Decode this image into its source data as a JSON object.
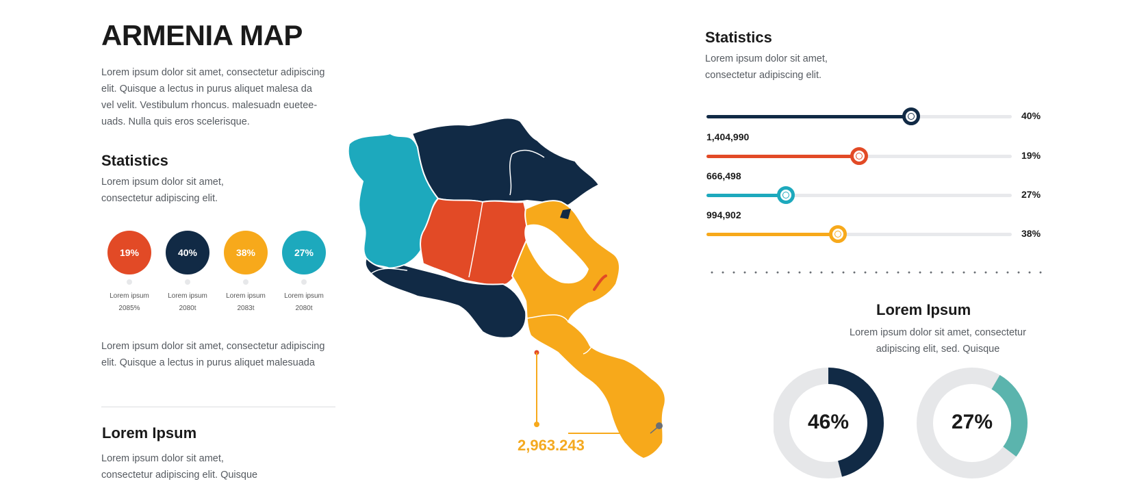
{
  "header": {
    "title": "ARMENIA MAP",
    "intro_lines": [
      "Lorem ipsum dolor sit amet, consectetur adipiscing",
      "elit. Quisque a lectus in purus aliquet malesa da",
      "vel velit. Vestibulum rhoncus. malesuadn euetee-",
      "uads. Nulla quis eros scelerisque."
    ]
  },
  "left_stats": {
    "title": "Statistics",
    "desc_lines": [
      "Lorem ipsum dolor sit amet,",
      "consectetur adipiscing elit."
    ],
    "circles": [
      {
        "value": "19%",
        "color": "#e24a26",
        "label": "Lorem ipsum",
        "sub": "2085%"
      },
      {
        "value": "40%",
        "color": "#112a45",
        "label": "Lorem ipsum",
        "sub": "2080t"
      },
      {
        "value": "38%",
        "color": "#f7a91b",
        "label": "Lorem ipsum",
        "sub": "2083t"
      },
      {
        "value": "27%",
        "color": "#1da9bd",
        "label": "Lorem ipsum",
        "sub": "2080t"
      }
    ],
    "body_lines": [
      "Lorem ipsum dolor sit amet, consectetur adipiscing",
      "elit. Quisque a lectus in purus aliquet malesuada"
    ]
  },
  "left_footer": {
    "title": "Lorem Ipsum",
    "desc_lines": [
      "Lorem ipsum dolor sit amet,",
      "consectetur adipiscing elit. Quisque"
    ]
  },
  "map": {
    "colors": {
      "navy": "#112a45",
      "teal": "#1da9bd",
      "red": "#e24a26",
      "yellow": "#f7a91b"
    },
    "callout_value": "2,963.243"
  },
  "right_stats": {
    "title": "Statistics",
    "desc_lines": [
      "Lorem ipsum dolor sit amet,",
      "consectetur adipiscing elit."
    ],
    "bars": [
      {
        "label": "",
        "value": 0.67,
        "pct": "40%",
        "color": "#112a45"
      },
      {
        "label": "1,404,990",
        "value": 0.5,
        "pct": "19%",
        "color": "#e24a26"
      },
      {
        "label": "666,498",
        "value": 0.26,
        "pct": "27%",
        "color": "#1da9bd"
      },
      {
        "label": "994,902",
        "value": 0.43,
        "pct": "38%",
        "color": "#f7a91b"
      }
    ]
  },
  "donut_section": {
    "title": "Lorem Ipsum",
    "desc_lines": [
      "Lorem ipsum dolor sit amet, consectetur",
      "adipiscing elit, sed. Quisque"
    ],
    "donuts": [
      {
        "value": "46%",
        "fraction": 0.46,
        "color": "#112a45"
      },
      {
        "value": "27%",
        "fraction": 0.27,
        "color": "#5bb4ad"
      }
    ]
  }
}
